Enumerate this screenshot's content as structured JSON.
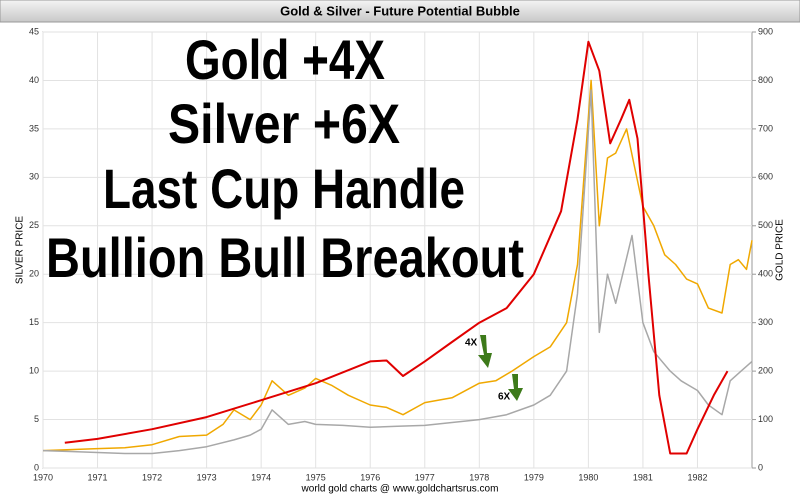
{
  "chart_data": {
    "type": "line",
    "title": "Gold & Silver - Future Potential Bubble",
    "headline": [
      "Gold +4X",
      "Silver +6X",
      "Last Cup Handle",
      "Bullion Bull Breakout"
    ],
    "annotations": [
      "4X",
      "6X"
    ],
    "footer": "world gold charts @ www.goldchartsrus.com",
    "ylabel": "SILVER PRICE",
    "y2label": "GOLD PRICE",
    "xlim": [
      1970,
      1983
    ],
    "xticks": [
      1970,
      1971,
      1972,
      1973,
      1974,
      1975,
      1976,
      1977,
      1978,
      1979,
      1980,
      1981,
      1982
    ],
    "ylim": [
      0,
      45
    ],
    "yticks": [
      0,
      5,
      10,
      15,
      20,
      25,
      30,
      35,
      40,
      45
    ],
    "y2lim": [
      0,
      900
    ],
    "y2ticks": [
      0,
      100,
      200,
      300,
      400,
      500,
      600,
      700,
      800,
      900
    ],
    "grid": true,
    "series": [
      {
        "color": "#f0a800",
        "axis": "y2",
        "x": [
          1970,
          1970.5,
          1971,
          1971.5,
          1972,
          1972.5,
          1973,
          1973.3,
          1973.5,
          1973.8,
          1974,
          1974.2,
          1974.5,
          1974.8,
          1975,
          1975.3,
          1975.6,
          1976,
          1976.3,
          1976.6,
          1977,
          1977.5,
          1978,
          1978.3,
          1978.6,
          1979,
          1979.3,
          1979.6,
          1979.8,
          1980.05,
          1980.2,
          1980.35,
          1980.5,
          1980.7,
          1980.85,
          1981,
          1981.2,
          1981.4,
          1981.6,
          1981.8,
          1982,
          1982.2,
          1982.45,
          1982.6,
          1982.75,
          1982.9,
          1983
        ],
        "values": [
          36,
          38,
          40,
          42,
          48,
          65,
          68,
          90,
          120,
          100,
          130,
          180,
          150,
          165,
          185,
          170,
          150,
          130,
          125,
          110,
          135,
          145,
          175,
          180,
          200,
          230,
          250,
          300,
          420,
          800,
          500,
          640,
          650,
          700,
          620,
          540,
          500,
          440,
          420,
          390,
          380,
          330,
          320,
          420,
          430,
          410,
          470
        ]
      },
      {
        "color": "#a8a8a8",
        "axis": "y",
        "x": [
          1970,
          1970.5,
          1971,
          1971.5,
          1972,
          1972.5,
          1973,
          1973.5,
          1973.8,
          1974,
          1974.2,
          1974.5,
          1974.8,
          1975,
          1975.5,
          1976,
          1976.5,
          1977,
          1977.5,
          1978,
          1978.5,
          1979,
          1979.3,
          1979.6,
          1979.8,
          1980.05,
          1980.2,
          1980.35,
          1980.5,
          1980.8,
          1981,
          1981.2,
          1981.5,
          1981.7,
          1982,
          1982.2,
          1982.45,
          1982.6,
          1982.8,
          1983
        ],
        "values": [
          1.8,
          1.7,
          1.6,
          1.5,
          1.5,
          1.8,
          2.2,
          2.9,
          3.4,
          4,
          6,
          4.5,
          4.8,
          4.5,
          4.4,
          4.2,
          4.3,
          4.4,
          4.7,
          5,
          5.5,
          6.5,
          7.5,
          10,
          18,
          39,
          14,
          20,
          17,
          24,
          15,
          12,
          10,
          9,
          8,
          6.5,
          5.5,
          9,
          10,
          11
        ]
      },
      {
        "color": "#e00000",
        "axis": "y2",
        "x": [
          1970.4,
          1971,
          1972,
          1973,
          1974,
          1975,
          1976,
          1976.3,
          1976.6,
          1977,
          1977.5,
          1978,
          1978.5,
          1979,
          1979.5,
          1979.8,
          1980,
          1980.2,
          1980.4,
          1980.6,
          1980.75,
          1980.9,
          1981.1,
          1981.3,
          1981.5,
          1981.8,
          1982,
          1982.3,
          1982.55
        ],
        "values": [
          52,
          60,
          80,
          105,
          140,
          175,
          220,
          222,
          190,
          220,
          260,
          300,
          330,
          400,
          530,
          720,
          880,
          820,
          670,
          720,
          760,
          680,
          400,
          150,
          30,
          30,
          80,
          150,
          200
        ]
      }
    ]
  }
}
